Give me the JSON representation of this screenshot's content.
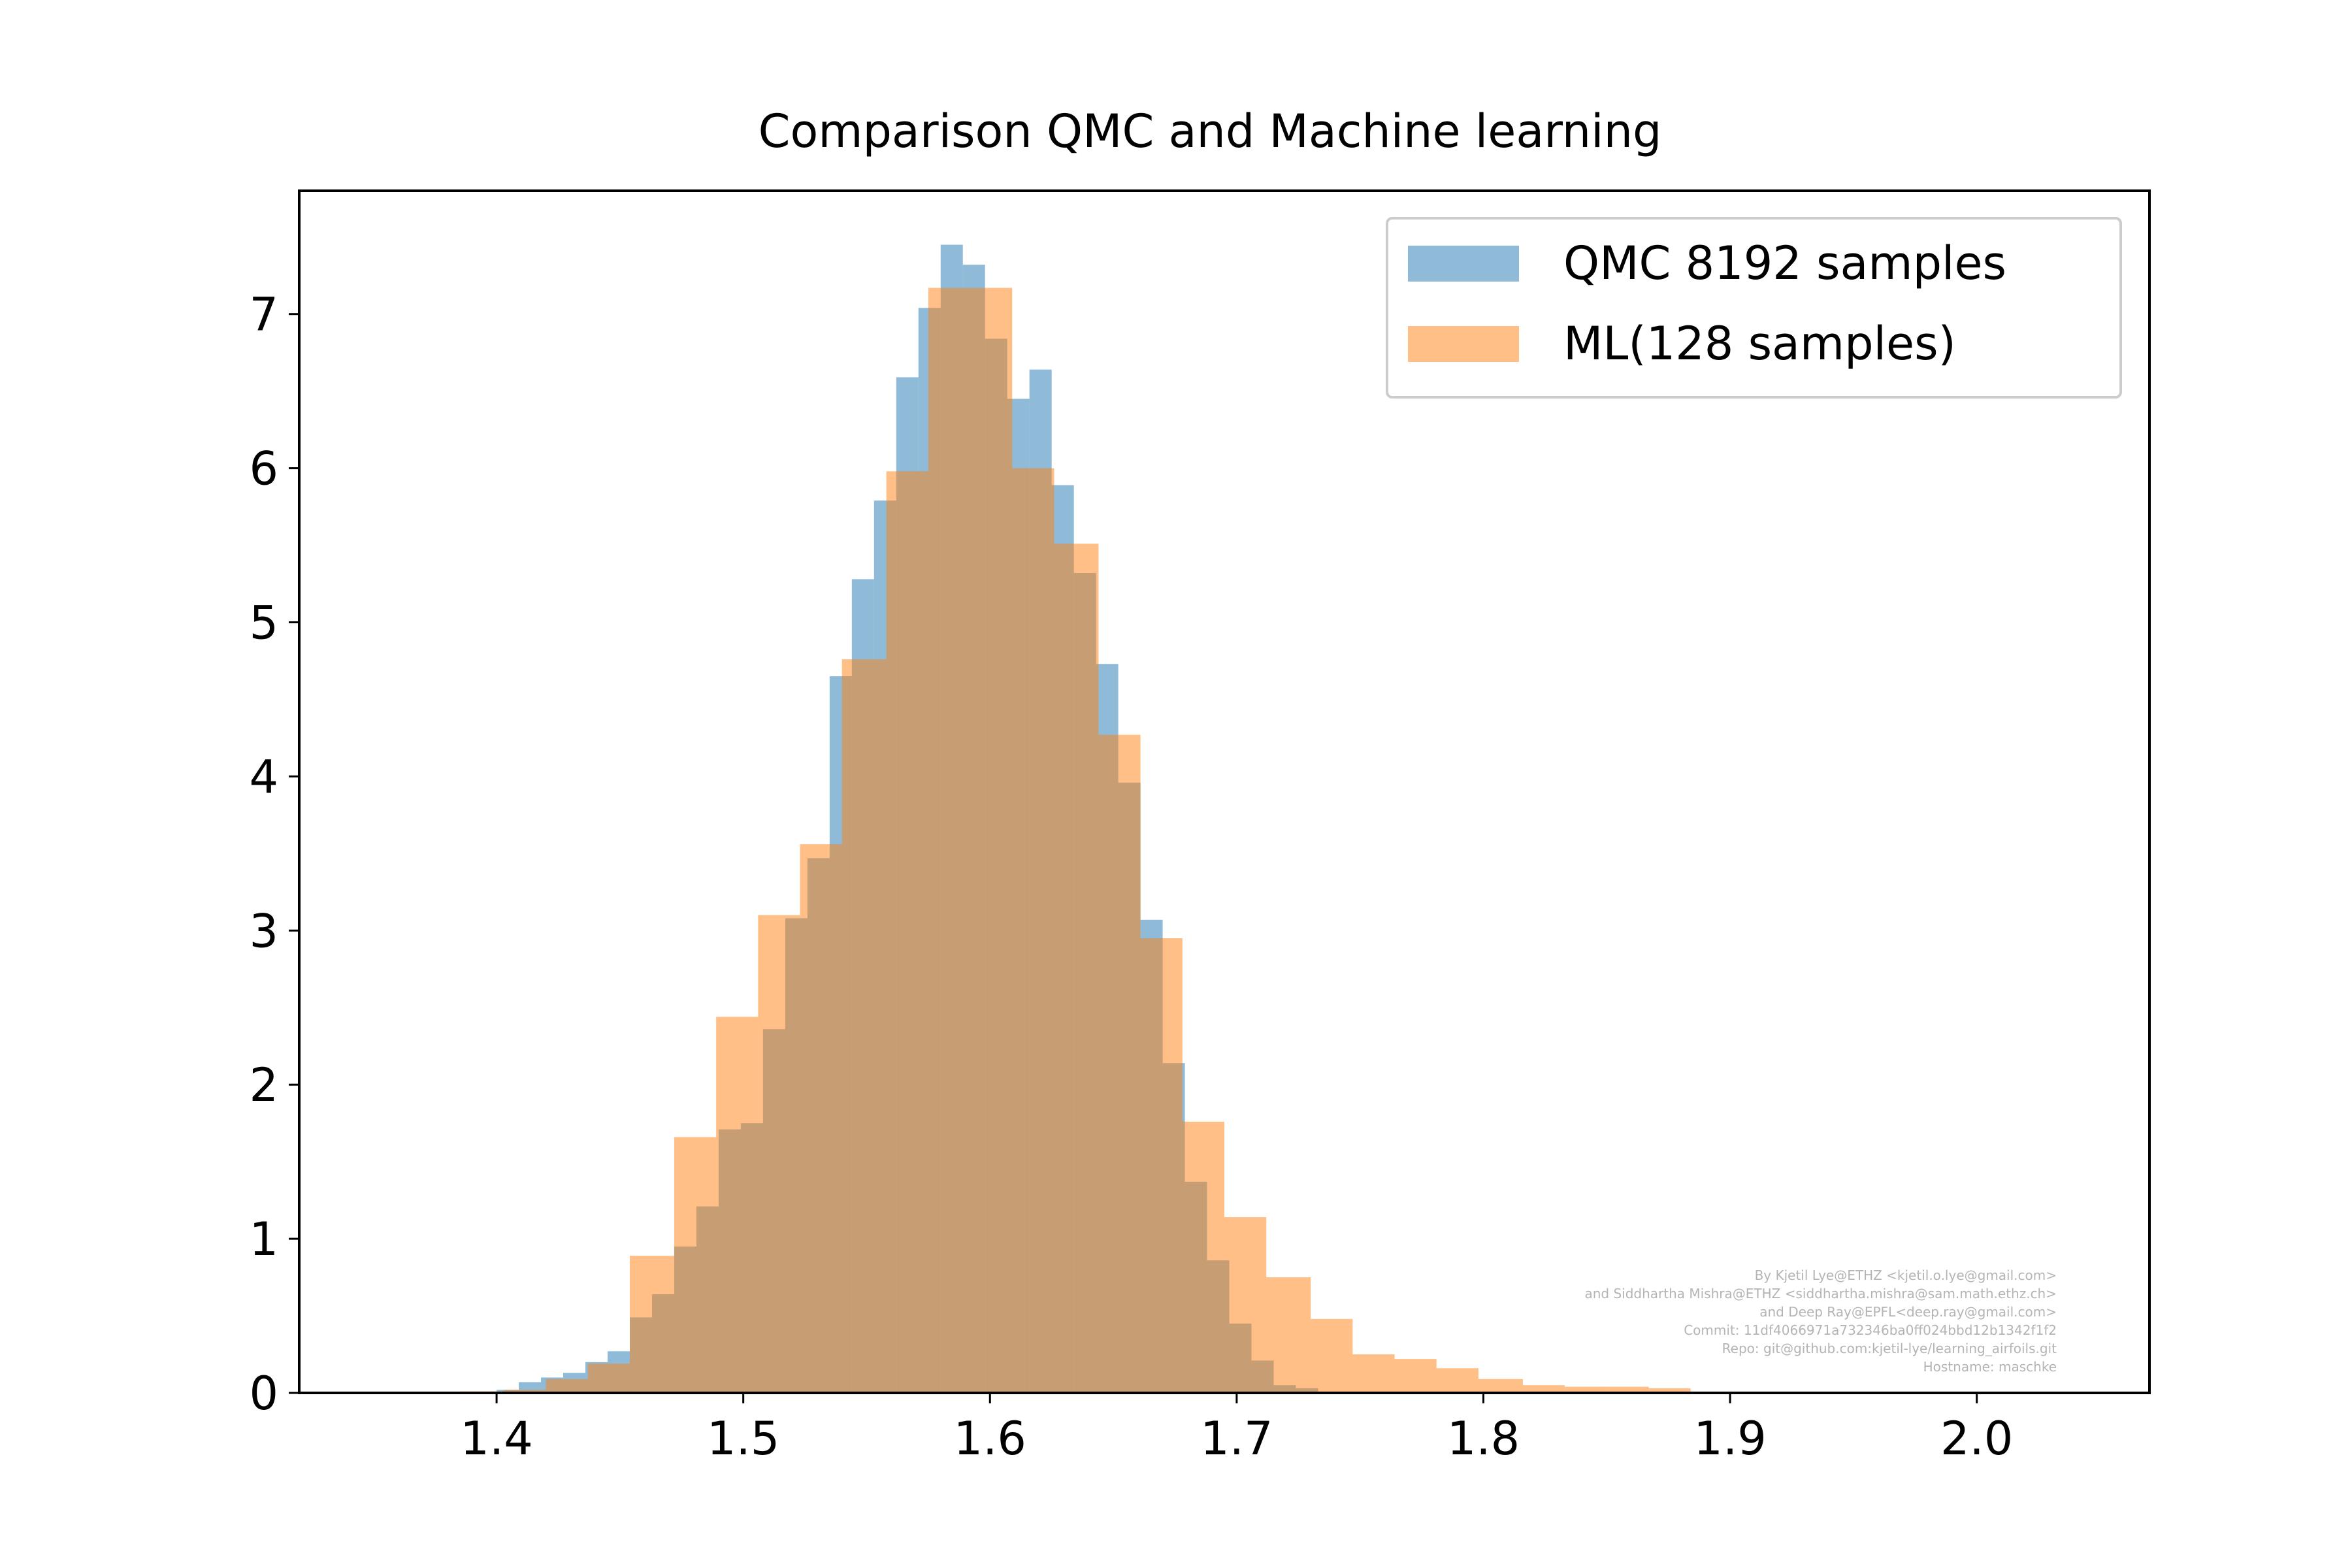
{
  "chart_data": {
    "type": "bar",
    "subtype": "overlaid-histogram",
    "title": "Comparison QMC and Machine learning",
    "xlabel": "",
    "ylabel": "",
    "xlim": [
      1.32,
      2.07
    ],
    "ylim": [
      0,
      7.8
    ],
    "xticks": [
      "1.4",
      "1.5",
      "1.6",
      "1.7",
      "1.8",
      "1.9",
      "2.0"
    ],
    "yticks": [
      "0",
      "1",
      "2",
      "3",
      "4",
      "5",
      "6",
      "7"
    ],
    "grid": false,
    "legend_position": "top-right",
    "series": [
      {
        "name": "QMC 8192 samples",
        "color": "#1f77b4",
        "alpha": 0.5,
        "bins": [
          [
            1.4,
            1.409,
            0.02
          ],
          [
            1.409,
            1.418,
            0.07
          ],
          [
            1.418,
            1.427,
            0.1
          ],
          [
            1.427,
            1.436,
            0.13
          ],
          [
            1.436,
            1.445,
            0.2
          ],
          [
            1.445,
            1.454,
            0.27
          ],
          [
            1.454,
            1.463,
            0.49
          ],
          [
            1.463,
            1.472,
            0.64
          ],
          [
            1.472,
            1.481,
            0.95
          ],
          [
            1.481,
            1.49,
            1.21
          ],
          [
            1.49,
            1.499,
            1.71
          ],
          [
            1.499,
            1.508,
            1.75
          ],
          [
            1.508,
            1.517,
            2.36
          ],
          [
            1.517,
            1.526,
            3.08
          ],
          [
            1.526,
            1.535,
            3.47
          ],
          [
            1.535,
            1.544,
            4.65
          ],
          [
            1.544,
            1.553,
            5.28
          ],
          [
            1.553,
            1.562,
            5.79
          ],
          [
            1.562,
            1.571,
            6.59
          ],
          [
            1.571,
            1.58,
            7.04
          ],
          [
            1.58,
            1.589,
            7.45
          ],
          [
            1.589,
            1.598,
            7.32
          ],
          [
            1.598,
            1.607,
            6.84
          ],
          [
            1.607,
            1.616,
            6.45
          ],
          [
            1.616,
            1.625,
            6.64
          ],
          [
            1.625,
            1.634,
            5.89
          ],
          [
            1.634,
            1.643,
            5.32
          ],
          [
            1.643,
            1.652,
            4.73
          ],
          [
            1.652,
            1.661,
            3.96
          ],
          [
            1.661,
            1.67,
            3.07
          ],
          [
            1.67,
            1.679,
            2.14
          ],
          [
            1.679,
            1.688,
            1.37
          ],
          [
            1.688,
            1.697,
            0.86
          ],
          [
            1.697,
            1.706,
            0.45
          ],
          [
            1.706,
            1.715,
            0.21
          ],
          [
            1.715,
            1.724,
            0.05
          ],
          [
            1.724,
            1.733,
            0.03
          ]
        ]
      },
      {
        "name": "ML(128 samples)",
        "color": "#ff7f0e",
        "alpha": 0.5,
        "bins": [
          [
            1.385,
            1.403,
            0.01
          ],
          [
            1.403,
            1.42,
            0.02
          ],
          [
            1.42,
            1.437,
            0.09
          ],
          [
            1.437,
            1.454,
            0.19
          ],
          [
            1.454,
            1.472,
            0.89
          ],
          [
            1.472,
            1.489,
            1.66
          ],
          [
            1.489,
            1.506,
            2.44
          ],
          [
            1.506,
            1.523,
            3.1
          ],
          [
            1.523,
            1.54,
            3.56
          ],
          [
            1.54,
            1.558,
            4.76
          ],
          [
            1.558,
            1.575,
            5.98
          ],
          [
            1.575,
            1.592,
            7.17
          ],
          [
            1.592,
            1.609,
            7.17
          ],
          [
            1.609,
            1.626,
            6.0
          ],
          [
            1.626,
            1.644,
            5.51
          ],
          [
            1.644,
            1.661,
            4.27
          ],
          [
            1.661,
            1.678,
            2.95
          ],
          [
            1.678,
            1.695,
            1.76
          ],
          [
            1.695,
            1.712,
            1.14
          ],
          [
            1.712,
            1.73,
            0.75
          ],
          [
            1.73,
            1.747,
            0.48
          ],
          [
            1.747,
            1.764,
            0.25
          ],
          [
            1.764,
            1.781,
            0.22
          ],
          [
            1.781,
            1.798,
            0.16
          ],
          [
            1.798,
            1.816,
            0.09
          ],
          [
            1.816,
            1.833,
            0.05
          ],
          [
            1.833,
            1.85,
            0.04
          ],
          [
            1.85,
            1.867,
            0.04
          ],
          [
            1.867,
            1.884,
            0.03
          ]
        ]
      }
    ],
    "watermark": [
      "By Kjetil Lye@ETHZ <kjetil.o.lye@gmail.com>",
      "and Siddhartha Mishra@ETHZ <siddhartha.mishra@sam.math.ethz.ch>",
      "and Deep Ray@EPFL<deep.ray@gmail.com>",
      "Commit: 11df4066971a732346ba0ff024bbd12b1342f1f2",
      "Repo: git@github.com:kjetil-lye/learning_airfoils.git",
      "Hostname: maschke"
    ]
  }
}
